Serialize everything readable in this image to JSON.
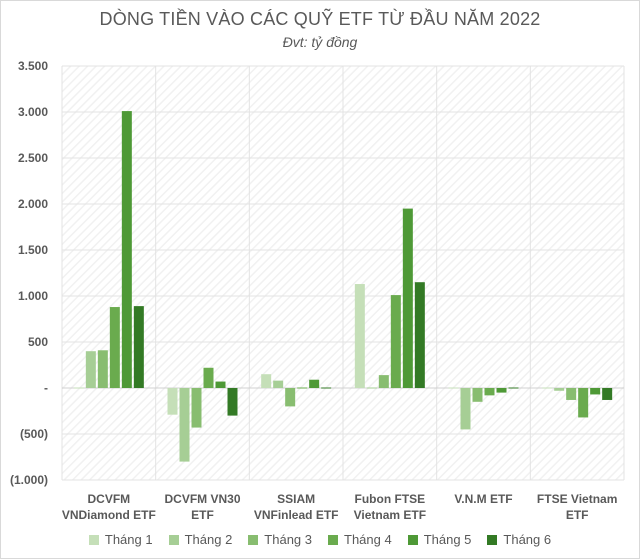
{
  "chart_data": {
    "type": "bar",
    "title": "DÒNG TIỀN VÀO CÁC QUỸ ETF TỪ ĐẦU NĂM 2022",
    "subtitle": "Đvt: tỷ đồng",
    "categories": [
      [
        "DCVFM",
        "VNDiamond ETF"
      ],
      [
        "DCVFM VN30",
        "ETF"
      ],
      [
        "SSIAM",
        "VNFinlead ETF"
      ],
      [
        "Fubon FTSE",
        "Vietnam ETF"
      ],
      [
        "V.N.M ETF"
      ],
      [
        "FTSE Vietnam",
        "ETF"
      ]
    ],
    "series": [
      {
        "name": "Tháng 1",
        "color": "#c5dfb8",
        "values": [
          -10,
          -290,
          150,
          1130,
          0,
          -10
        ]
      },
      {
        "name": "Tháng 2",
        "color": "#a6ce95",
        "values": [
          400,
          -800,
          80,
          10,
          -450,
          -30
        ]
      },
      {
        "name": "Tháng 3",
        "color": "#88bd70",
        "values": [
          410,
          -430,
          -200,
          140,
          -150,
          -130
        ]
      },
      {
        "name": "Tháng 4",
        "color": "#6aab4e",
        "values": [
          880,
          220,
          10,
          1010,
          -80,
          -320
        ]
      },
      {
        "name": "Tháng 5",
        "color": "#4e9936",
        "values": [
          3010,
          70,
          90,
          1950,
          -50,
          -70
        ]
      },
      {
        "name": "Tháng 6",
        "color": "#337a25",
        "values": [
          890,
          -300,
          10,
          1150,
          0,
          -130
        ]
      }
    ],
    "yticks": [
      {
        "value": 3500,
        "label": "3.500"
      },
      {
        "value": 3000,
        "label": "3.000"
      },
      {
        "value": 2500,
        "label": "2.500"
      },
      {
        "value": 2000,
        "label": "2.000"
      },
      {
        "value": 1500,
        "label": "1.500"
      },
      {
        "value": 1000,
        "label": "1.000"
      },
      {
        "value": 500,
        "label": "500"
      },
      {
        "value": 0,
        "label": "-"
      },
      {
        "value": -500,
        "label": "(500)"
      },
      {
        "value": -1000,
        "label": "(1.000)"
      }
    ],
    "ylim": [
      -1000,
      3500
    ],
    "legend_position": "bottom"
  }
}
